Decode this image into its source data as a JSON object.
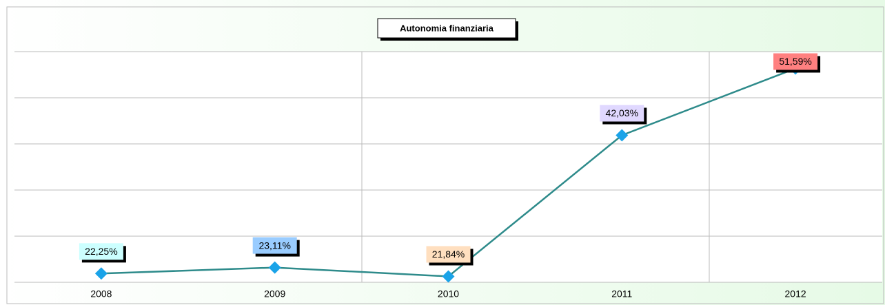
{
  "chart_data": {
    "type": "line",
    "title": "Autonomia finanziaria",
    "categories": [
      "2008",
      "2009",
      "2010",
      "2011",
      "2012"
    ],
    "values": [
      22.25,
      23.11,
      21.84,
      42.03,
      51.59
    ],
    "value_labels": [
      "22,25%",
      "23,11%",
      "21,84%",
      "42,03%",
      "51,59%"
    ],
    "label_colors": [
      "#ccffff",
      "#99ccff",
      "#ffdfbf",
      "#e0d8ff",
      "#ff8080"
    ],
    "color": "#2e8b8b",
    "marker_color": "#1aa3e8",
    "ylim": [
      21,
      54
    ],
    "yticks": [
      21,
      27.6,
      34.2,
      40.8,
      47.4,
      54
    ],
    "grid": true
  }
}
